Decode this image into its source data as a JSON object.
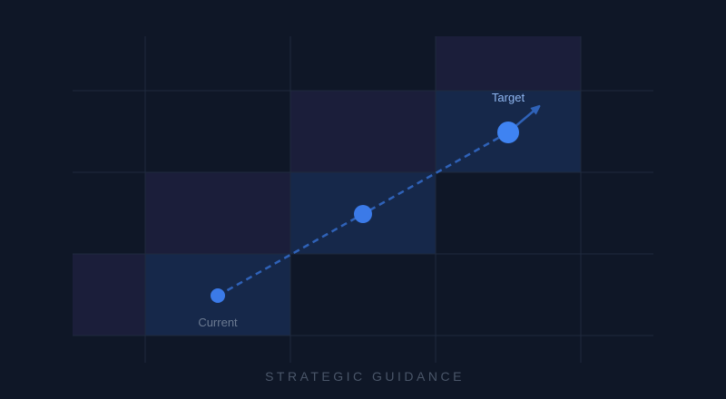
{
  "nodes": [
    {
      "label": "Current"
    },
    {
      "label": "Target"
    }
  ],
  "footer": {
    "title": "STRATEGIC GUIDANCE"
  }
}
